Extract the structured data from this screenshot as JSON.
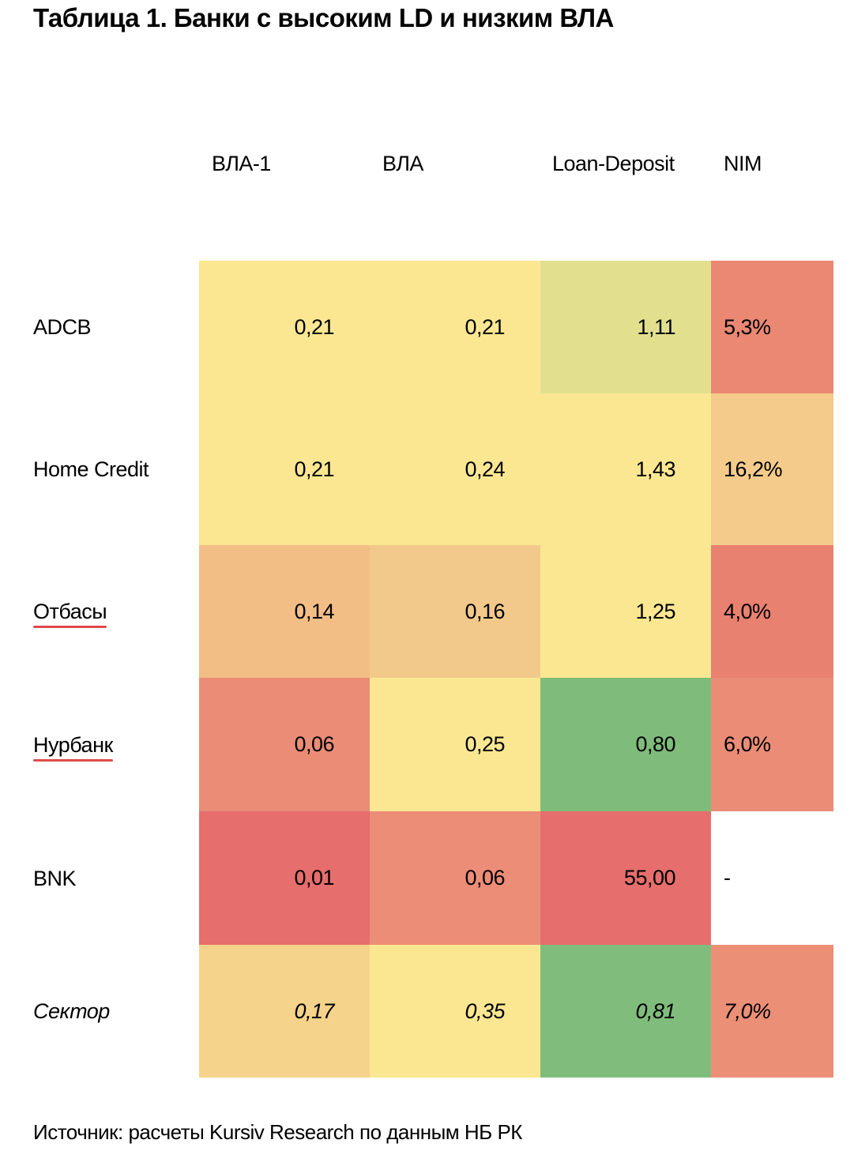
{
  "title": "Таблица 1. Банки с высоким LD и низким ВЛА",
  "source": "Источник: расчеты Kursiv Research по данным НБ РК",
  "chart_data": {
    "type": "table",
    "title": "Таблица 1. Банки с высоким LD и низким ВЛА",
    "columns": [
      "ВЛА-1",
      "ВЛА",
      "Loan-Deposit",
      "NIM"
    ],
    "rows": [
      {
        "label": "ADCB",
        "italic": false,
        "underlined": false,
        "values": [
          "0,21",
          "0,21",
          "1,11",
          "5,3%"
        ],
        "colors": [
          "#fbe792",
          "#fbe792",
          "#e2e08e",
          "#ea8873"
        ]
      },
      {
        "label": "Home Credit",
        "italic": false,
        "underlined": false,
        "values": [
          "0,21",
          "0,24",
          "1,43",
          "16,2%"
        ],
        "colors": [
          "#fbe792",
          "#fbe792",
          "#fbe792",
          "#f4cb8a"
        ]
      },
      {
        "label": "Отбасы",
        "italic": false,
        "underlined": true,
        "values": [
          "0,14",
          "0,16",
          "1,25",
          "4,0%"
        ],
        "colors": [
          "#f3be86",
          "#f2c98a",
          "#fbe792",
          "#e98170"
        ]
      },
      {
        "label": "Нурбанк",
        "italic": false,
        "underlined": true,
        "values": [
          "0,06",
          "0,25",
          "0,80",
          "6,0%"
        ],
        "colors": [
          "#ea8c76",
          "#fbe792",
          "#7fbc7b",
          "#ea8c76"
        ]
      },
      {
        "label": "BNK",
        "italic": false,
        "underlined": false,
        "values": [
          "0,01",
          "0,06",
          "55,00",
          "-"
        ],
        "colors": [
          "#e66e6c",
          "#ec8d77",
          "#e66e6c",
          "#ffffff"
        ]
      },
      {
        "label": "Сектор",
        "italic": true,
        "underlined": false,
        "values": [
          "0,17",
          "0,35",
          "0,81",
          "7,0%"
        ],
        "colors": [
          "#f5d38a",
          "#fbe792",
          "#80bd7d",
          "#eb8f77"
        ]
      }
    ]
  }
}
